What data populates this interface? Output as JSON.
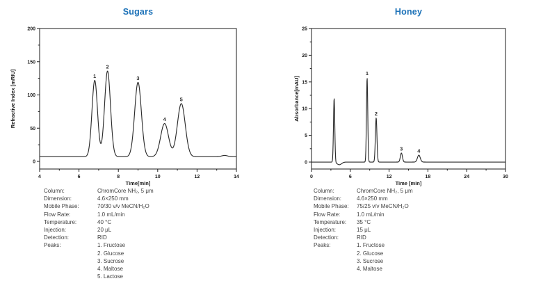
{
  "colors": {
    "title": "#1d72b8",
    "trace": "#2b2b2b",
    "axis": "#1a1a1a",
    "tick_text": "#1a1a1a",
    "info_text": "#3f3f3f"
  },
  "chart_data": [
    {
      "type": "line",
      "title": "Sugars",
      "xlabel": "Time[min]",
      "ylabel": "Refractive Index [mRIU]",
      "xlim": [
        4,
        14
      ],
      "ylim": [
        -11.5,
        200
      ],
      "x_major_ticks": [
        4,
        6,
        8,
        10,
        12,
        14
      ],
      "x_minor_ticks": [
        5,
        7,
        9,
        11,
        13
      ],
      "y_major_ticks": [
        0,
        50,
        100,
        150,
        200
      ],
      "y_minor_ticks": [
        25,
        75,
        125,
        175
      ],
      "grid": false,
      "baseline": 7,
      "y_unit": "mRIU",
      "peaks": [
        {
          "label": "1",
          "name": "Fructose",
          "time_min": 6.8,
          "apex": 122,
          "sigma": 0.14
        },
        {
          "label": "2",
          "name": "Glucose",
          "time_min": 7.45,
          "apex": 136,
          "sigma": 0.15
        },
        {
          "label": "3",
          "name": "Sucrose",
          "time_min": 9.0,
          "apex": 119,
          "sigma": 0.17
        },
        {
          "label": "4",
          "name": "Maltose",
          "time_min": 10.35,
          "apex": 57,
          "sigma": 0.2
        },
        {
          "label": "5",
          "name": "Lactose",
          "time_min": 11.2,
          "apex": 87,
          "sigma": 0.2
        },
        {
          "label": "",
          "name": "",
          "time_min": 13.4,
          "apex": 9,
          "sigma": 0.15
        }
      ]
    },
    {
      "type": "line",
      "title": "Honey",
      "xlabel": "Time [min]",
      "ylabel": "Absorbance[mAU]",
      "xlim": [
        0,
        30
      ],
      "ylim": [
        -1.3,
        25
      ],
      "x_major_ticks": [
        0,
        6,
        12,
        18,
        24,
        30
      ],
      "x_minor_ticks": [
        3,
        9,
        15,
        21,
        27
      ],
      "y_major_ticks": [
        0,
        5,
        10,
        15,
        20,
        25
      ],
      "y_minor_ticks": [
        2.5,
        7.5,
        12.5,
        17.5,
        22.5
      ],
      "grid": false,
      "baseline": 0,
      "y_unit": "mAU",
      "peaks": [
        {
          "label": "",
          "name": "",
          "time_min": 3.5,
          "apex": 12,
          "sigma": 0.1
        },
        {
          "label": "",
          "name": "",
          "time_min": 4.3,
          "apex": -0.5,
          "sigma": 0.35
        },
        {
          "label": "1",
          "name": "Fructose",
          "time_min": 8.6,
          "apex": 15.8,
          "sigma": 0.1
        },
        {
          "label": "2",
          "name": "Glucose",
          "time_min": 10.0,
          "apex": 8.3,
          "sigma": 0.12
        },
        {
          "label": "3",
          "name": "Sucrose",
          "time_min": 13.9,
          "apex": 1.7,
          "sigma": 0.16
        },
        {
          "label": "4",
          "name": "Maltose",
          "time_min": 16.6,
          "apex": 1.3,
          "sigma": 0.22
        }
      ]
    }
  ],
  "info_blocks": [
    {
      "rows": [
        {
          "label": "Column:",
          "value": "ChromCore NH₂, 5 μm"
        },
        {
          "label": "Dimension:",
          "value": "4.6×250 mm"
        },
        {
          "label": "Mobile Phase:",
          "value": "70/30 v/v MeCN/H₂O"
        },
        {
          "label": "Flow Rate:",
          "value": "1.0 mL/min"
        },
        {
          "label": "Temperature:",
          "value": "40 °C"
        },
        {
          "label": "Injection:",
          "value": "20 μL"
        },
        {
          "label": "Detection:",
          "value": "RID"
        },
        {
          "label": "Peaks:",
          "value": "1. Fructose"
        },
        {
          "label": "",
          "value": "2. Glucose"
        },
        {
          "label": "",
          "value": "3. Sucrose"
        },
        {
          "label": "",
          "value": "4. Maltose"
        },
        {
          "label": "",
          "value": "5. Lactose"
        }
      ]
    },
    {
      "rows": [
        {
          "label": "Column:",
          "value": "ChromCore NH₂, 5 μm"
        },
        {
          "label": "Dimension:",
          "value": "4.6×250 mm"
        },
        {
          "label": "Mobile Phase:",
          "value": "75/25 v/v MeCN/H₂O"
        },
        {
          "label": "Flow Rate:",
          "value": "1.0 mL/min"
        },
        {
          "label": "Temperature:",
          "value": "35 °C"
        },
        {
          "label": "Injection:",
          "value": "15 μL"
        },
        {
          "label": "Detection:",
          "value": "RID"
        },
        {
          "label": "Peaks:",
          "value": "1. Fructose"
        },
        {
          "label": "",
          "value": "2. Glucose"
        },
        {
          "label": "",
          "value": "3. Sucrose"
        },
        {
          "label": "",
          "value": "4. Maltose"
        }
      ]
    }
  ]
}
